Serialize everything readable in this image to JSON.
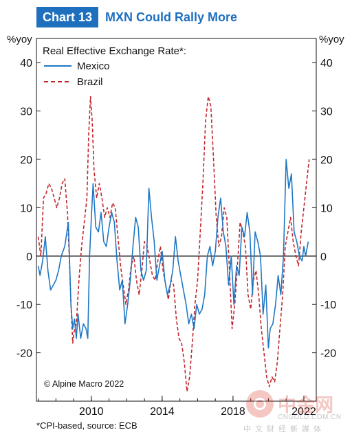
{
  "header": {
    "chart_number": "Chart 13",
    "title": "MXN Could Rally More"
  },
  "footnote": "*CPI-based, source: ECB",
  "watermark": {
    "brand": "中金网",
    "url": "CNGOLD.COM.CN",
    "tagline": "中文财经新媒体"
  },
  "colors": {
    "mexico": "#1f77c4",
    "brazil": "#c0272d",
    "header_bg": "#1f6fbf"
  },
  "chart_data": {
    "type": "line",
    "title": "Real Effective Exchange Rate*:",
    "ylabel_left": "%yoy",
    "ylabel_right": "%yoy",
    "annotation": "© Alpine Macro 2022",
    "ylim": [
      -30,
      45
    ],
    "xlim": [
      2006.9,
      2022.7
    ],
    "y_ticks": [
      -20,
      -10,
      0,
      10,
      20,
      30,
      40
    ],
    "y_tick_labels": [
      "-20",
      "-10",
      "0",
      "10",
      "20",
      "30",
      "40"
    ],
    "x_ticks": [
      2010,
      2014,
      2018,
      2022
    ],
    "x_tick_labels": [
      "2010",
      "2014",
      "2018",
      "2022"
    ],
    "grid": false,
    "zero_line": true,
    "legend_position": "top-left",
    "series": [
      {
        "name": "Mexico",
        "style": "solid",
        "x": [
          2007.0,
          2007.1,
          2007.25,
          2007.4,
          2007.55,
          2007.7,
          2007.85,
          2008.0,
          2008.15,
          2008.3,
          2008.5,
          2008.7,
          2008.85,
          2008.95,
          2009.05,
          2009.15,
          2009.25,
          2009.4,
          2009.55,
          2009.7,
          2009.8,
          2009.9,
          2010.0,
          2010.1,
          2010.25,
          2010.4,
          2010.55,
          2010.7,
          2010.85,
          2011.0,
          2011.15,
          2011.3,
          2011.45,
          2011.6,
          2011.75,
          2011.9,
          2012.05,
          2012.2,
          2012.35,
          2012.5,
          2012.65,
          2012.8,
          2012.95,
          2013.1,
          2013.25,
          2013.4,
          2013.55,
          2013.7,
          2013.85,
          2014.0,
          2014.15,
          2014.3,
          2014.45,
          2014.6,
          2014.75,
          2014.9,
          2015.05,
          2015.2,
          2015.35,
          2015.5,
          2015.65,
          2015.8,
          2015.95,
          2016.1,
          2016.25,
          2016.4,
          2016.55,
          2016.7,
          2016.85,
          2017.0,
          2017.15,
          2017.3,
          2017.45,
          2017.6,
          2017.75,
          2017.9,
          2018.05,
          2018.2,
          2018.35,
          2018.5,
          2018.65,
          2018.8,
          2018.95,
          2019.1,
          2019.25,
          2019.4,
          2019.55,
          2019.7,
          2019.85,
          2020.0,
          2020.1,
          2020.25,
          2020.4,
          2020.55,
          2020.7,
          2020.85,
          2021.0,
          2021.15,
          2021.3,
          2021.45,
          2021.6,
          2021.75,
          2021.9,
          2022.0,
          2022.1,
          2022.25
        ],
        "values": [
          -2,
          -4,
          -1,
          4,
          -3,
          -7,
          -6,
          -5,
          -3,
          0,
          2,
          7,
          -10,
          -15,
          -13,
          -17,
          -12,
          -17,
          -14,
          -15,
          -17,
          0,
          8,
          15,
          6,
          5,
          9,
          3,
          2,
          6,
          9,
          7,
          -1,
          -7,
          -5,
          -14,
          -10,
          -5,
          2,
          8,
          6,
          -3,
          -5,
          -3,
          14,
          8,
          3,
          -5,
          -2,
          1,
          -5,
          -8,
          -6,
          -3,
          4,
          -1,
          -4,
          -7,
          -10,
          -14,
          -12,
          -15,
          -10,
          -12,
          -11,
          -8,
          0,
          2,
          -2,
          1,
          8,
          12,
          5,
          2,
          -6,
          0,
          -10,
          -2,
          -4,
          6,
          4,
          9,
          5,
          -8,
          5,
          3,
          0,
          -12,
          -6,
          -19,
          -15,
          -14,
          -10,
          -4,
          -8,
          0,
          20,
          14,
          17,
          5,
          3,
          0,
          -1,
          2,
          0,
          3
        ]
      },
      {
        "name": "Brazil",
        "style": "dashed",
        "x": [
          2007.0,
          2007.15,
          2007.3,
          2007.45,
          2007.6,
          2007.75,
          2007.9,
          2008.05,
          2008.2,
          2008.35,
          2008.5,
          2008.65,
          2008.75,
          2008.85,
          2008.95,
          2009.05,
          2009.15,
          2009.3,
          2009.45,
          2009.6,
          2009.75,
          2009.85,
          2009.95,
          2010.05,
          2010.15,
          2010.3,
          2010.45,
          2010.6,
          2010.75,
          2010.9,
          2011.05,
          2011.2,
          2011.35,
          2011.5,
          2011.65,
          2011.8,
          2011.95,
          2012.1,
          2012.25,
          2012.4,
          2012.55,
          2012.7,
          2012.85,
          2013.0,
          2013.15,
          2013.3,
          2013.45,
          2013.6,
          2013.75,
          2013.9,
          2014.05,
          2014.2,
          2014.35,
          2014.5,
          2014.65,
          2014.8,
          2014.95,
          2015.1,
          2015.25,
          2015.4,
          2015.55,
          2015.7,
          2015.85,
          2016.0,
          2016.15,
          2016.3,
          2016.45,
          2016.6,
          2016.75,
          2016.9,
          2017.05,
          2017.2,
          2017.35,
          2017.5,
          2017.65,
          2017.8,
          2017.95,
          2018.1,
          2018.25,
          2018.4,
          2018.55,
          2018.7,
          2018.85,
          2019.0,
          2019.15,
          2019.3,
          2019.45,
          2019.6,
          2019.75,
          2019.9,
          2020.05,
          2020.2,
          2020.35,
          2020.5,
          2020.65,
          2020.8,
          2020.95,
          2021.1,
          2021.25,
          2021.4,
          2021.55,
          2021.7,
          2021.85,
          2022.0,
          2022.15,
          2022.3
        ],
        "values": [
          4,
          0,
          12,
          13,
          15,
          14,
          12,
          10,
          12,
          15,
          16,
          9,
          0,
          -10,
          -18,
          -15,
          -14,
          -5,
          2,
          7,
          12,
          25,
          33,
          28,
          18,
          12,
          15,
          12,
          8,
          10,
          8,
          11,
          10,
          4,
          -2,
          -6,
          -10,
          -7,
          -2,
          0,
          -5,
          -8,
          -3,
          3,
          2,
          -1,
          -4,
          -5,
          -1,
          2,
          -3,
          -6,
          -9,
          -5,
          -6,
          -13,
          -17,
          -18,
          -22,
          -28,
          -25,
          -18,
          -10,
          -5,
          5,
          15,
          28,
          33,
          31,
          20,
          8,
          2,
          4,
          10,
          8,
          -3,
          -15,
          -10,
          -2,
          7,
          5,
          2,
          -8,
          -11,
          -5,
          -3,
          -8,
          -15,
          -20,
          -25,
          -27,
          -25,
          -26,
          -22,
          -15,
          -8,
          2,
          5,
          8,
          3,
          0,
          -2,
          5,
          10,
          15,
          20
        ]
      }
    ]
  }
}
